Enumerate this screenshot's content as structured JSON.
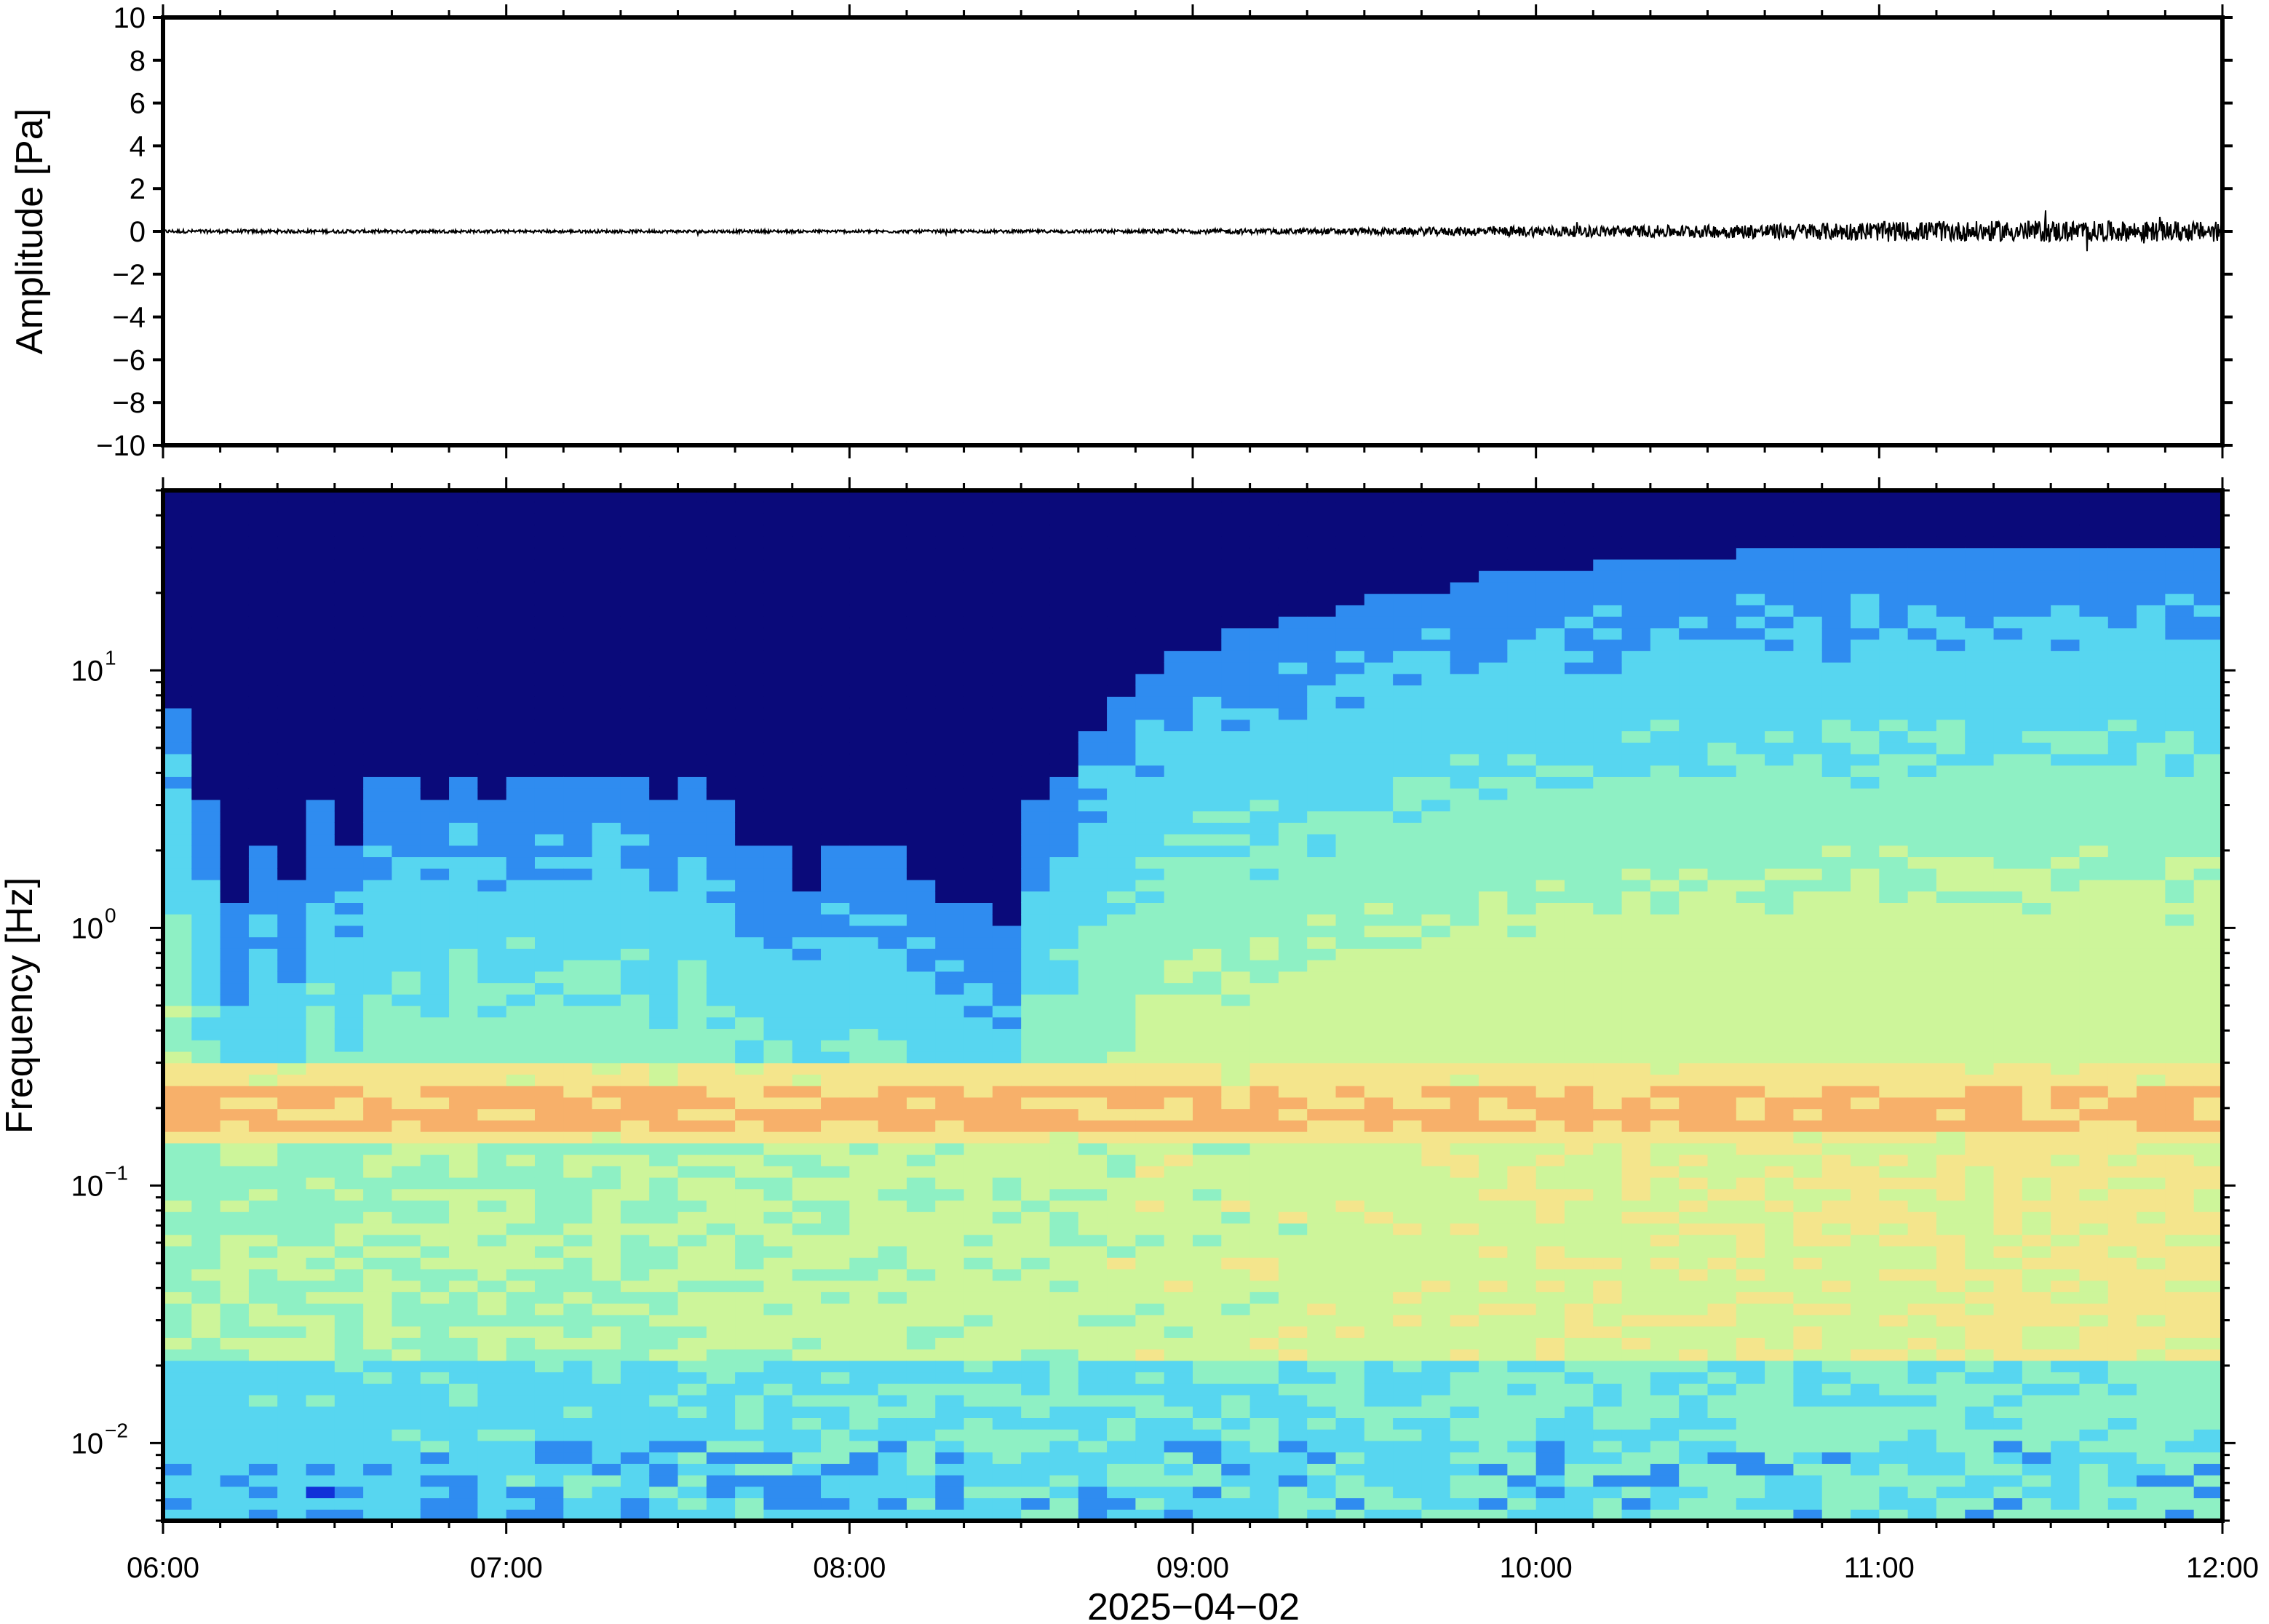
{
  "chart_data": [
    {
      "type": "line",
      "panel": "waveform",
      "ylabel": "Amplitude [Pa]",
      "ylim": [
        -10,
        10
      ],
      "y_ticks": [
        -10,
        -8,
        -6,
        -4,
        -2,
        0,
        2,
        4,
        6,
        8,
        10
      ],
      "y_tick_labels": [
        "−10",
        "−8",
        "−6",
        "−4",
        "−2",
        "0",
        "2",
        "4",
        "6",
        "8",
        "10"
      ],
      "xlim": [
        "06:00",
        "12:00"
      ],
      "series": [
        {
          "color": "#000000",
          "note_values": "envelope half-amplitude in Pa at each half hour",
          "x": [
            "06:00",
            "06:30",
            "07:00",
            "07:30",
            "08:00",
            "08:30",
            "09:00",
            "09:30",
            "10:00",
            "10:30",
            "11:00",
            "11:30",
            "12:00"
          ],
          "values": [
            0.08,
            0.08,
            0.07,
            0.07,
            0.07,
            0.07,
            0.1,
            0.15,
            0.25,
            0.3,
            0.45,
            0.5,
            0.45
          ]
        }
      ]
    },
    {
      "type": "heatmap",
      "panel": "spectrogram",
      "ylabel": "Frequency [Hz]",
      "xlabel": "2025−04−02",
      "y_scale": "log",
      "ylim": [
        0.005,
        50
      ],
      "y_tick_labels": [
        {
          "base": "10",
          "exp": "−2",
          "value": 0.01
        },
        {
          "base": "10",
          "exp": "−1",
          "value": 0.1
        },
        {
          "base": "10",
          "exp": "0",
          "value": 1
        },
        {
          "base": "10",
          "exp": "1",
          "value": 10
        }
      ],
      "x_tick_labels": [
        "06:00",
        "07:00",
        "08:00",
        "09:00",
        "10:00",
        "11:00",
        "12:00"
      ],
      "colormap": "jet",
      "colors": [
        "#0a0a7a",
        "#1130d8",
        "#2f8cf0",
        "#57d6f0",
        "#8ef0c4",
        "#cdf59a",
        "#f4e58c",
        "#f7b06a",
        "#f0844f"
      ],
      "time_bins_per_hour": 12,
      "note_levels": "relative power level (0 low – 1 high) of the upper noise edge: frequency (Hz) where background turns dark blue",
      "noise_edge_hz": [
        7,
        3,
        1.2,
        2,
        1.5,
        3,
        2,
        4,
        4,
        3,
        4,
        3,
        4,
        4,
        4,
        4,
        4,
        3,
        4,
        3,
        2,
        2,
        1.4,
        2,
        2,
        2,
        1.5,
        1.2,
        1.2,
        1.0,
        3,
        4,
        6,
        8,
        10,
        12,
        12,
        14,
        14,
        16,
        16,
        18,
        20,
        20,
        20,
        22,
        24,
        24,
        25,
        25,
        26,
        26,
        28,
        28,
        28,
        30,
        30,
        30,
        30,
        30,
        30,
        30,
        30,
        30,
        30,
        30,
        30,
        30,
        30,
        30,
        30,
        30
      ],
      "band_hz": 0.19
    }
  ]
}
